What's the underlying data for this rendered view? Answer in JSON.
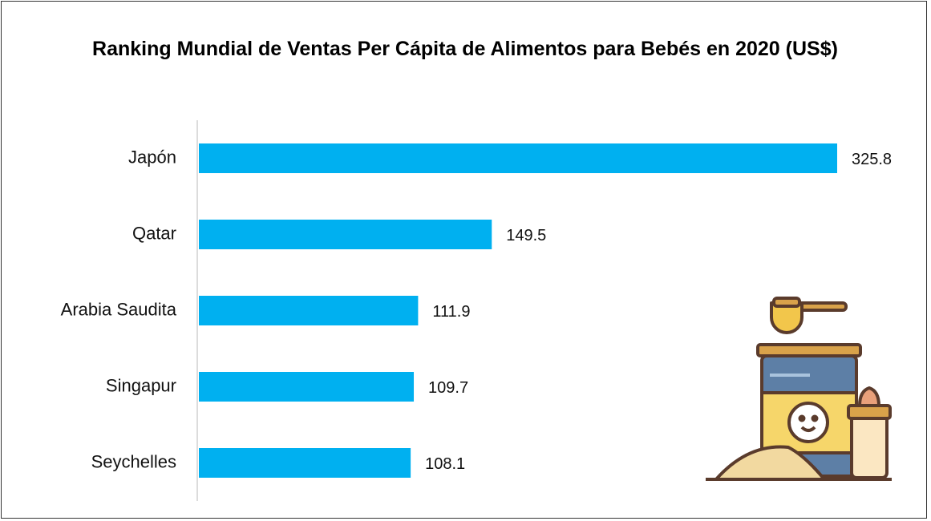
{
  "chart_data": {
    "type": "bar",
    "orientation": "horizontal",
    "title": "Ranking Mundial de Ventas Per Cápita de Alimentos para Bebés en 2020 (US$)",
    "categories": [
      "Japón",
      "Qatar",
      "Arabia Saudita",
      "Singapur",
      "Seychelles"
    ],
    "values": [
      325.8,
      149.5,
      111.9,
      109.7,
      108.1
    ],
    "color": "#00b0f0"
  }
}
